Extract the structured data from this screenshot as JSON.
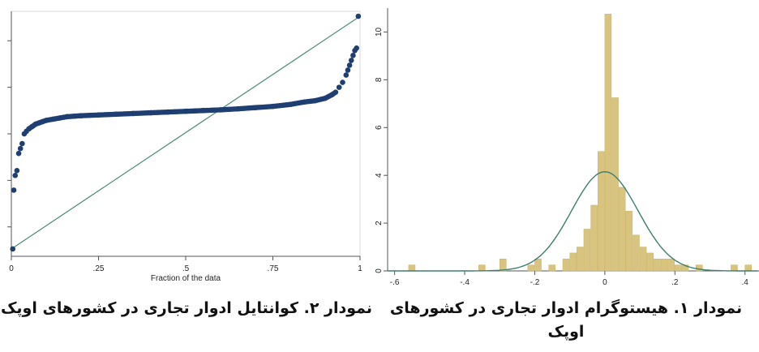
{
  "chart_data": [
    {
      "type": "scatter",
      "title": "",
      "xlabel": "Fraction of the data",
      "ylabel": "",
      "xlim": [
        0,
        1
      ],
      "ylim": [
        0,
        1
      ],
      "grid": false,
      "x_ticks": [
        "0",
        ".25",
        ".5",
        ".75",
        "1"
      ],
      "x_tick_values": [
        0,
        0.25,
        0.5,
        0.75,
        1
      ],
      "reference_line": {
        "from": [
          0,
          0.03
        ],
        "to": [
          1,
          0.98
        ]
      },
      "points_x": [
        0.004,
        0.007,
        0.011,
        0.016,
        0.021,
        0.026,
        0.031,
        0.037,
        0.043,
        0.05,
        0.06,
        0.07,
        0.08,
        0.09,
        0.1,
        0.12,
        0.14,
        0.16,
        0.18,
        0.2,
        0.25,
        0.3,
        0.35,
        0.4,
        0.45,
        0.5,
        0.55,
        0.6,
        0.65,
        0.7,
        0.75,
        0.8,
        0.84,
        0.87,
        0.9,
        0.92,
        0.93,
        0.94,
        0.95,
        0.96,
        0.965,
        0.97,
        0.975,
        0.98,
        0.985,
        0.99,
        0.995
      ],
      "points_y": [
        0.03,
        0.27,
        0.33,
        0.35,
        0.42,
        0.44,
        0.46,
        0.5,
        0.51,
        0.52,
        0.53,
        0.54,
        0.545,
        0.55,
        0.555,
        0.56,
        0.565,
        0.57,
        0.572,
        0.574,
        0.577,
        0.58,
        0.583,
        0.586,
        0.589,
        0.592,
        0.595,
        0.598,
        0.602,
        0.607,
        0.612,
        0.62,
        0.63,
        0.635,
        0.645,
        0.66,
        0.67,
        0.69,
        0.71,
        0.74,
        0.76,
        0.78,
        0.8,
        0.82,
        0.84,
        0.85,
        0.98
      ],
      "colors": {
        "points": "#1f3f73",
        "line": "#4a8a72"
      }
    },
    {
      "type": "bar",
      "title": "",
      "xlabel": "",
      "ylabel": "",
      "xlim": [
        -0.62,
        0.44
      ],
      "ylim": [
        0,
        11
      ],
      "grid": false,
      "x_ticks": [
        "-.6",
        "-.4",
        "-.2",
        "0",
        ".2",
        ".4"
      ],
      "x_tick_values": [
        -0.6,
        -0.4,
        -0.2,
        0,
        0.2,
        0.4
      ],
      "y_ticks": [
        "0",
        "2",
        "4",
        "6",
        "8",
        "10"
      ],
      "y_tick_values": [
        0,
        2,
        4,
        6,
        8,
        10
      ],
      "bin_width": 0.02,
      "bin_left_edges": [
        -0.56,
        -0.36,
        -0.3,
        -0.22,
        -0.2,
        -0.16,
        -0.12,
        -0.1,
        -0.08,
        -0.06,
        -0.04,
        -0.02,
        0,
        0.02,
        0.04,
        0.06,
        0.08,
        0.1,
        0.12,
        0.14,
        0.16,
        0.18,
        0.2,
        0.22,
        0.26,
        0.36,
        0.4
      ],
      "bin_heights": [
        0.25,
        0.25,
        0.5,
        0.25,
        0.5,
        0.25,
        0.5,
        0.75,
        1.0,
        1.75,
        2.75,
        5.0,
        10.75,
        7.25,
        3.5,
        2.5,
        1.5,
        1.0,
        0.75,
        0.5,
        0.5,
        0.5,
        0.25,
        0.25,
        0.25,
        0.25,
        0.25
      ],
      "normal_curve": {
        "mean": 0.0,
        "sd": 0.095,
        "peak": 4.15
      },
      "colors": {
        "bars": "#d8c47e",
        "bar_edge": "#c9b56b",
        "curve": "#3e7e6e"
      }
    }
  ],
  "captions": {
    "quantile": "نمودار ۲. کوانتایل ادوار تجاری در کشورهای اوپک",
    "histogram": "نمودار ۱. هیستوگرام ادوار تجاری در کشورهای اوپک"
  }
}
